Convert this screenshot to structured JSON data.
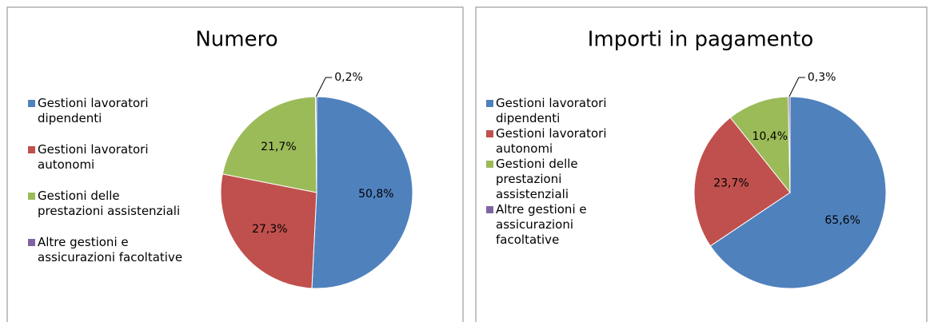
{
  "chart_data": [
    {
      "type": "pie",
      "title": "Numero",
      "categories": [
        "Gestioni lavoratori dipendenti",
        "Gestioni lavoratori autonomi",
        "Gestioni delle prestazioni assistenziali",
        "Altre gestioni e assicurazioni facoltative"
      ],
      "values": [
        50.8,
        27.3,
        21.7,
        0.2
      ],
      "value_labels": [
        "50,8%",
        "27,3%",
        "21,7%",
        "0,2%"
      ],
      "colors": [
        "#4f81bd",
        "#c0504d",
        "#9bbb59",
        "#8064a2"
      ]
    },
    {
      "type": "pie",
      "title": "Importi in pagamento",
      "categories": [
        "Gestioni lavoratori dipendenti",
        "Gestioni lavoratori autonomi",
        "Gestioni delle prestazioni assistenziali",
        "Altre gestioni e assicurazioni facoltative"
      ],
      "values": [
        65.6,
        23.7,
        10.4,
        0.3
      ],
      "value_labels": [
        "65,6%",
        "23,7%",
        "10,4%",
        "0,3%"
      ],
      "colors": [
        "#4f81bd",
        "#c0504d",
        "#9bbb59",
        "#8064a2"
      ]
    }
  ]
}
